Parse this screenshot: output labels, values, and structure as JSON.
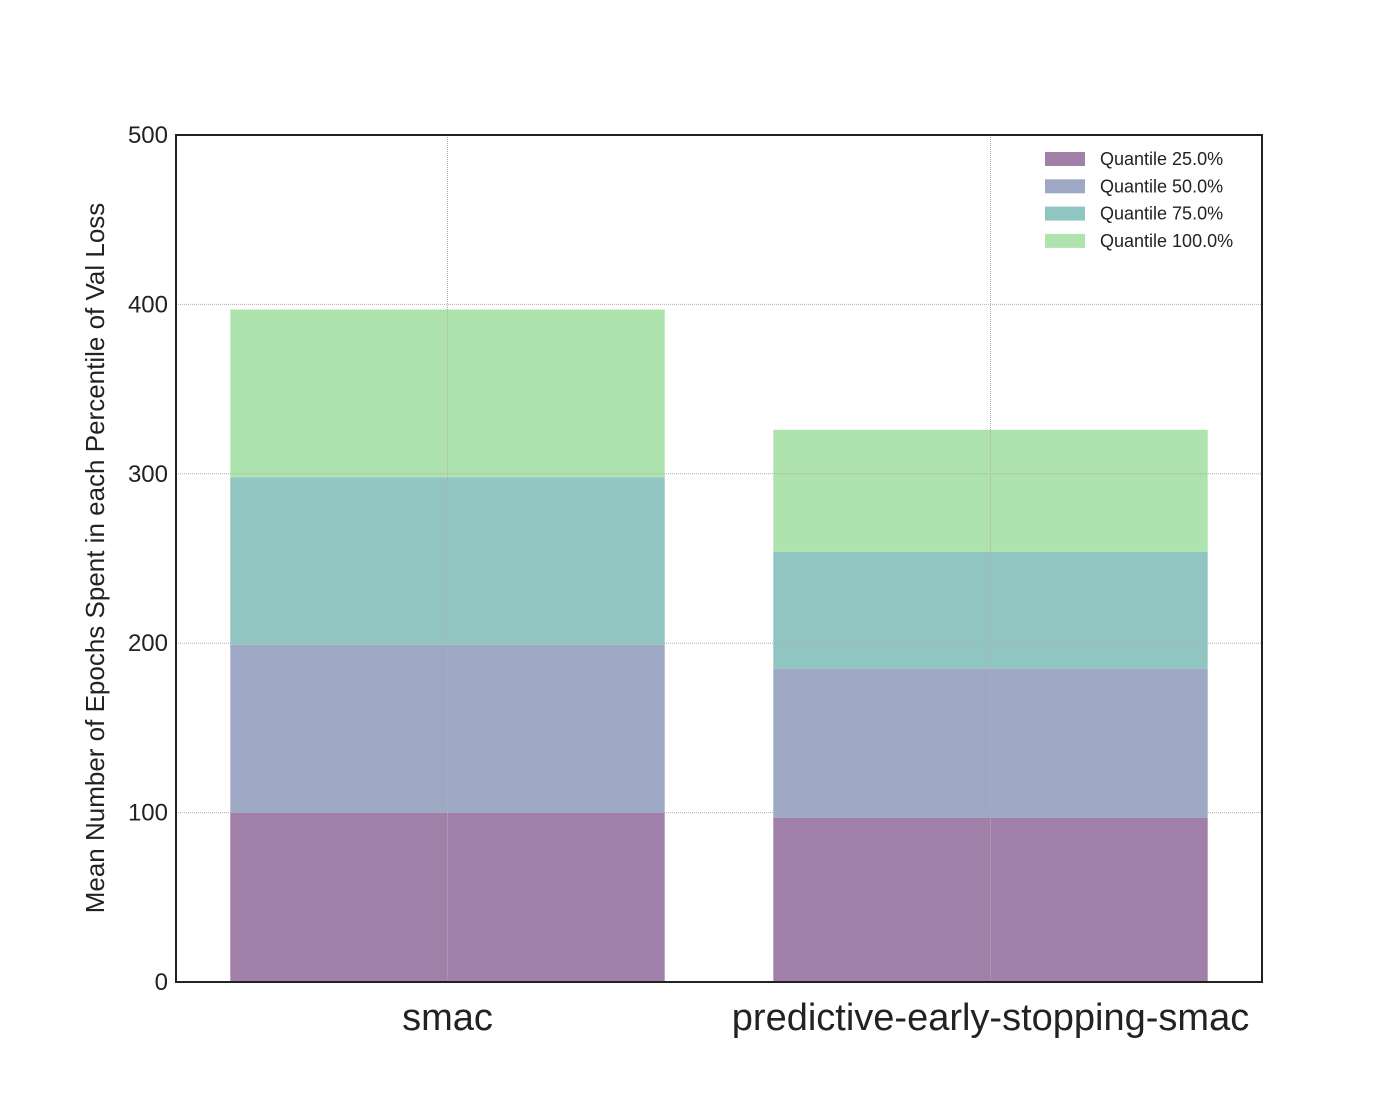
{
  "chart_data": {
    "type": "bar",
    "stacked": true,
    "categories": [
      "smac",
      "predictive-early-stopping-smac"
    ],
    "series": [
      {
        "name": "Quantile 25.0%",
        "values": [
          100,
          97
        ],
        "color": "#a07fa8"
      },
      {
        "name": "Quantile 50.0%",
        "values": [
          99,
          88
        ],
        "color": "#9ea7c3"
      },
      {
        "name": "Quantile 75.0%",
        "values": [
          99,
          69
        ],
        "color": "#90c5c2"
      },
      {
        "name": "Quantile 100.0%",
        "values": [
          99,
          72
        ],
        "color": "#aee3ae"
      }
    ],
    "title": "",
    "xlabel": "",
    "ylabel": "Mean Number of Epochs Spent in each Percentile of Val Loss",
    "ylim": [
      0,
      500
    ],
    "yticks": [
      0,
      100,
      200,
      300,
      400,
      500
    ],
    "grid": true,
    "legend_position": "top-right"
  }
}
